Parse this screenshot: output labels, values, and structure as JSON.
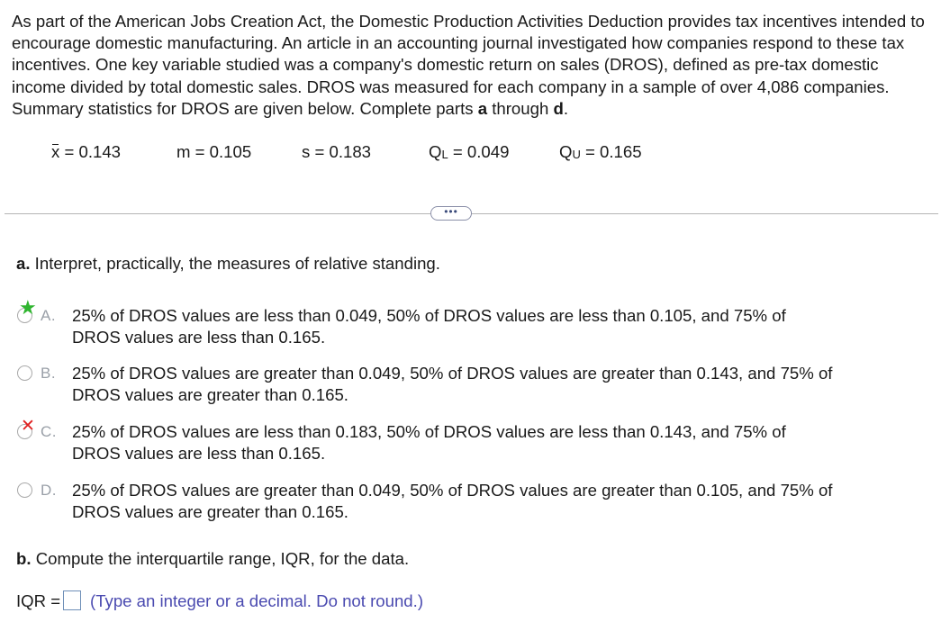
{
  "intro": "As part of the American Jobs Creation Act, the Domestic Production Activities Deduction provides tax incentives intended to encourage domestic manufacturing. An article in an accounting journal investigated how companies respond to these tax incentives. One key variable studied was a company's domestic return on sales (DROS), defined as pre-tax domestic income divided by total domestic sales. DROS was measured for each company in a sample of over 4,086 companies. Summary statistics for DROS are given below. Complete parts ",
  "intro_bold_a": "a",
  "intro_through": " through ",
  "intro_bold_d": "d",
  "intro_end": ".",
  "stats": {
    "mean_symbol": "x",
    "mean": " = 0.143",
    "median": "m = 0.105",
    "sd": "s = 0.183",
    "ql_symbol": "Q",
    "ql_sub": "L",
    "ql": " = 0.049",
    "qu_symbol": "Q",
    "qu_sub": "U",
    "qu": " = 0.165"
  },
  "more_button": "•••",
  "part_a": {
    "letter": "a.",
    "prompt": " Interpret, practically, the measures of relative standing.",
    "options": [
      {
        "letter": "A.",
        "status": "correct",
        "line1": "25% of DROS values are less than 0.049, 50% of DROS values are less than 0.105, and 75% of",
        "line2": "DROS values are less than 0.165."
      },
      {
        "letter": "B.",
        "status": "unselected",
        "line1": "25% of DROS values are greater than 0.049, 50% of DROS values are greater than 0.143, and 75% of",
        "line2": "DROS values are greater than 0.165."
      },
      {
        "letter": "C.",
        "status": "incorrect",
        "line1": "25% of DROS values are less than 0.183, 50% of DROS values are less than 0.143, and 75% of",
        "line2": "DROS values are less than 0.165."
      },
      {
        "letter": "D.",
        "status": "unselected",
        "line1": "25% of DROS values are greater than 0.049, 50% of DROS values are greater than 0.105, and 75% of",
        "line2": "DROS values are greater than 0.165."
      }
    ]
  },
  "part_b": {
    "letter": "b.",
    "prompt": " Compute the interquartile range, IQR, for the data.",
    "iqr_label": "IQR =",
    "iqr_value": "",
    "hint": "(Type an integer or a decimal. Do not round.)"
  },
  "colors": {
    "correct_star": "#2fb52f",
    "incorrect_cross": "#e02020",
    "hint_text": "#4a4ab0"
  }
}
